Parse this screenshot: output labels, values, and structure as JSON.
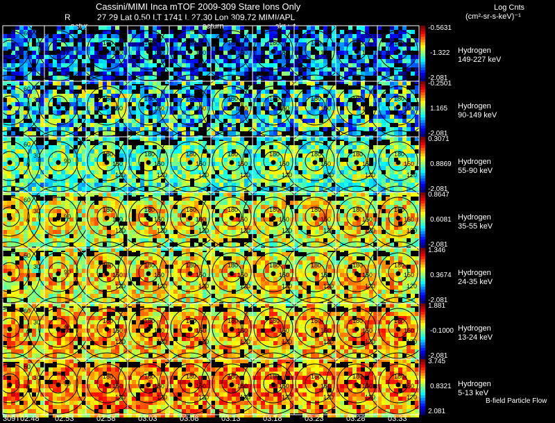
{
  "header": {
    "title": "Cassini/MIMI Inca mTOF  2009-309   Stare    Ions Only",
    "line2_r_label": "R",
    "line2_values": "27.29 Lat 0.50 LT 1741 L        27.30 Lon          309.72   MIMI/APL",
    "markers": [
      "satur",
      "saturn",
      "skr-wt"
    ]
  },
  "legend": {
    "title": "Log Cnts",
    "units": "(cm²-sr-s-keV)⁻¹"
  },
  "panel_colors": {
    "bar_top": "#ff0000",
    "bar_mid": "#00ffff",
    "bar_bottom": "#0000ff",
    "grid_line": "#ffffff"
  },
  "chart_data": {
    "type": "heatmap",
    "columns": [
      "309T02:48",
      "02:53",
      "02:58",
      "03:03",
      "03:08",
      "03:13",
      "03:18",
      "03:23",
      "03:28",
      "03:33"
    ],
    "rows": [
      {
        "species": "Hydrogen",
        "energy": "149-227 keV",
        "max": "-0.5631",
        "mid": "-1.322",
        "min": "-2.081",
        "level": 0.25
      },
      {
        "species": "Hydrogen",
        "energy": "90-149 keV",
        "max": "-0.2501",
        "mid": "1.165",
        "min": "-2.081",
        "level": 0.4
      },
      {
        "species": "Hydrogen",
        "energy": "55-90 keV",
        "max": "0.3071",
        "mid": "0.8869",
        "min": "-2.081",
        "level": 0.55
      },
      {
        "species": "Hydrogen",
        "energy": "35-55 keV",
        "max": "0.8647",
        "mid": "0.6081",
        "min": "-2.081",
        "level": 0.68
      },
      {
        "species": "Hydrogen",
        "energy": "24-35 keV",
        "max": "1.346",
        "mid": "0.3674",
        "min": "-2.081",
        "level": 0.7
      },
      {
        "species": "Hydrogen",
        "energy": "13-24 keV",
        "max": "1.881",
        "mid": "-0.1000",
        "min": "-2.081",
        "level": 0.76
      },
      {
        "species": "Hydrogen",
        "energy": "5-13 keV",
        "max": "3.745",
        "mid": "0.8321",
        "min": "2.081",
        "level": 0.8
      }
    ],
    "contour_labels": [
      "180",
      "150",
      "120",
      "90",
      "60",
      "30",
      "0"
    ],
    "footer_note": "B-field Particle Flow"
  }
}
